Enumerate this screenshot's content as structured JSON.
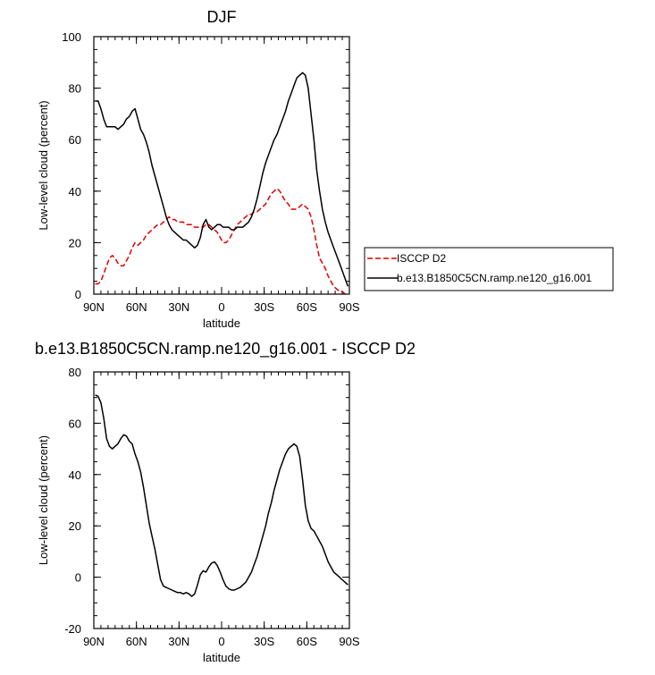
{
  "chart_data": [
    {
      "type": "line",
      "title": "DJF",
      "xlabel": "latitude",
      "ylabel": "Low-level cloud (percent)",
      "xlim": [
        90,
        -90
      ],
      "ylim": [
        0,
        100
      ],
      "x_ticks": [
        {
          "value": 90,
          "label": "90N"
        },
        {
          "value": 60,
          "label": "60N"
        },
        {
          "value": 30,
          "label": "30N"
        },
        {
          "value": 0,
          "label": "0"
        },
        {
          "value": -30,
          "label": "30S"
        },
        {
          "value": -60,
          "label": "60S"
        },
        {
          "value": -90,
          "label": "90S"
        }
      ],
      "y_ticks": [
        {
          "value": 0,
          "label": "0"
        },
        {
          "value": 20,
          "label": "20"
        },
        {
          "value": 40,
          "label": "40"
        },
        {
          "value": 60,
          "label": "60"
        },
        {
          "value": 80,
          "label": "80"
        },
        {
          "value": 100,
          "label": "100"
        }
      ],
      "legend": {
        "position": "right"
      },
      "series": [
        {
          "name": "ISCCP D2",
          "color": "#e00000",
          "dash": "dashed",
          "x": [
            89,
            87,
            85,
            83,
            81,
            79,
            77,
            75,
            73,
            71,
            69,
            67,
            65,
            63,
            61,
            59,
            57,
            55,
            53,
            51,
            49,
            47,
            45,
            43,
            41,
            39,
            37,
            35,
            33,
            31,
            29,
            27,
            25,
            23,
            21,
            19,
            17,
            15,
            13,
            11,
            9,
            7,
            5,
            3,
            1,
            -1,
            -3,
            -5,
            -7,
            -9,
            -11,
            -13,
            -15,
            -17,
            -19,
            -21,
            -23,
            -25,
            -27,
            -29,
            -31,
            -33,
            -35,
            -37,
            -39,
            -41,
            -43,
            -45,
            -47,
            -49,
            -51,
            -53,
            -55,
            -57,
            -59,
            -61,
            -63,
            -65,
            -67,
            -69,
            -71,
            -73,
            -75,
            -77,
            -79,
            -81,
            -83,
            -85,
            -87,
            -89
          ],
          "values": [
            4,
            4,
            5,
            8,
            11,
            14,
            15,
            14,
            12,
            11,
            11,
            13,
            15,
            18,
            20,
            19,
            20,
            21,
            23,
            24,
            25,
            26,
            27,
            27,
            28,
            29,
            30,
            29,
            29,
            28,
            28,
            28,
            27,
            27,
            27,
            26,
            26,
            26,
            26,
            27,
            27,
            26,
            25,
            24,
            22,
            20,
            20,
            21,
            23,
            25,
            27,
            28,
            29,
            30,
            31,
            31,
            32,
            32,
            33,
            34,
            35,
            37,
            39,
            40,
            41,
            40,
            38,
            36,
            35,
            33,
            33,
            33,
            34,
            35,
            34,
            33,
            30,
            25,
            19,
            14,
            12,
            10,
            7,
            5,
            3,
            2,
            1,
            1,
            0,
            0
          ]
        },
        {
          "name": "b.e13.B1850C5CN.ramp.ne120_g16.001",
          "color": "#000000",
          "dash": "solid",
          "x": [
            89,
            87,
            85,
            83,
            81,
            79,
            77,
            75,
            73,
            71,
            69,
            67,
            65,
            63,
            61,
            59,
            57,
            55,
            53,
            51,
            49,
            47,
            45,
            43,
            41,
            39,
            37,
            35,
            33,
            31,
            29,
            27,
            25,
            23,
            21,
            19,
            17,
            15,
            13,
            11,
            9,
            7,
            5,
            3,
            1,
            -1,
            -3,
            -5,
            -7,
            -9,
            -11,
            -13,
            -15,
            -17,
            -19,
            -21,
            -23,
            -25,
            -27,
            -29,
            -31,
            -33,
            -35,
            -37,
            -39,
            -41,
            -43,
            -45,
            -47,
            -49,
            -51,
            -53,
            -55,
            -57,
            -59,
            -61,
            -63,
            -65,
            -67,
            -69,
            -71,
            -73,
            -75,
            -77,
            -79,
            -81,
            -83,
            -85,
            -87,
            -89
          ],
          "values": [
            75,
            75,
            72,
            68,
            65,
            65,
            65,
            65,
            64,
            65,
            66,
            68,
            69,
            71,
            72,
            68,
            64,
            62,
            59,
            55,
            50,
            46,
            42,
            38,
            34,
            30,
            27,
            25,
            24,
            23,
            22,
            21,
            21,
            20,
            19,
            18,
            19,
            22,
            27,
            29,
            26,
            25,
            26,
            27,
            27,
            26,
            26,
            26,
            25,
            25,
            26,
            26,
            26,
            27,
            28,
            30,
            33,
            37,
            42,
            47,
            51,
            54,
            57,
            60,
            62,
            65,
            68,
            71,
            75,
            78,
            81,
            84,
            85,
            86,
            85,
            80,
            70,
            60,
            48,
            40,
            33,
            28,
            24,
            21,
            18,
            15,
            12,
            9,
            6,
            3
          ]
        }
      ]
    },
    {
      "type": "line",
      "title": "b.e13.B1850C5CN.ramp.ne120_g16.001 - ISCCP D2",
      "xlabel": "latitude",
      "ylabel": "Low-level cloud (percent)",
      "xlim": [
        90,
        -90
      ],
      "ylim": [
        -20,
        80
      ],
      "x_ticks": [
        {
          "value": 90,
          "label": "90N"
        },
        {
          "value": 60,
          "label": "60N"
        },
        {
          "value": 30,
          "label": "30N"
        },
        {
          "value": 0,
          "label": "0"
        },
        {
          "value": -30,
          "label": "30S"
        },
        {
          "value": -60,
          "label": "60S"
        },
        {
          "value": -90,
          "label": "90S"
        }
      ],
      "y_ticks": [
        {
          "value": -20,
          "label": "-20"
        },
        {
          "value": 0,
          "label": "0"
        },
        {
          "value": 20,
          "label": "20"
        },
        {
          "value": 40,
          "label": "40"
        },
        {
          "value": 60,
          "label": "60"
        },
        {
          "value": 80,
          "label": "80"
        }
      ],
      "series": [
        {
          "color": "#000000",
          "dash": "solid",
          "x": [
            89,
            87,
            85,
            83,
            81,
            79,
            77,
            75,
            73,
            71,
            69,
            67,
            65,
            63,
            61,
            59,
            57,
            55,
            53,
            51,
            49,
            47,
            45,
            43,
            41,
            39,
            37,
            35,
            33,
            31,
            29,
            27,
            25,
            23,
            21,
            19,
            17,
            15,
            13,
            11,
            9,
            7,
            5,
            3,
            1,
            -1,
            -3,
            -5,
            -7,
            -9,
            -11,
            -13,
            -15,
            -17,
            -19,
            -21,
            -23,
            -25,
            -27,
            -29,
            -31,
            -33,
            -35,
            -37,
            -39,
            -41,
            -43,
            -45,
            -47,
            -49,
            -51,
            -53,
            -55,
            -57,
            -59,
            -61,
            -63,
            -65,
            -67,
            -69,
            -71,
            -73,
            -75,
            -77,
            -79,
            -81,
            -83,
            -85,
            -87,
            -89
          ],
          "values": [
            71,
            70.5,
            68,
            62,
            54,
            51,
            50,
            51,
            52,
            54,
            55.5,
            55,
            53,
            52,
            48,
            45,
            41,
            35,
            28,
            21,
            16,
            11,
            5,
            -1,
            -3.5,
            -4,
            -4.5,
            -5,
            -5.5,
            -6,
            -6,
            -6.5,
            -6,
            -6.5,
            -7.5,
            -6.5,
            -3,
            1,
            2.5,
            2,
            4,
            5.5,
            6,
            4.5,
            2,
            -1,
            -3.5,
            -4.5,
            -5,
            -5,
            -4.5,
            -4,
            -3,
            -2,
            0,
            2,
            5,
            8,
            12,
            16,
            20,
            25,
            29,
            34,
            38,
            42,
            45,
            48,
            50,
            51,
            52,
            51,
            47,
            38,
            28,
            22,
            19,
            18,
            16,
            14,
            12,
            9,
            6,
            4,
            2,
            1,
            0,
            -1,
            -2,
            -3
          ]
        }
      ]
    }
  ]
}
